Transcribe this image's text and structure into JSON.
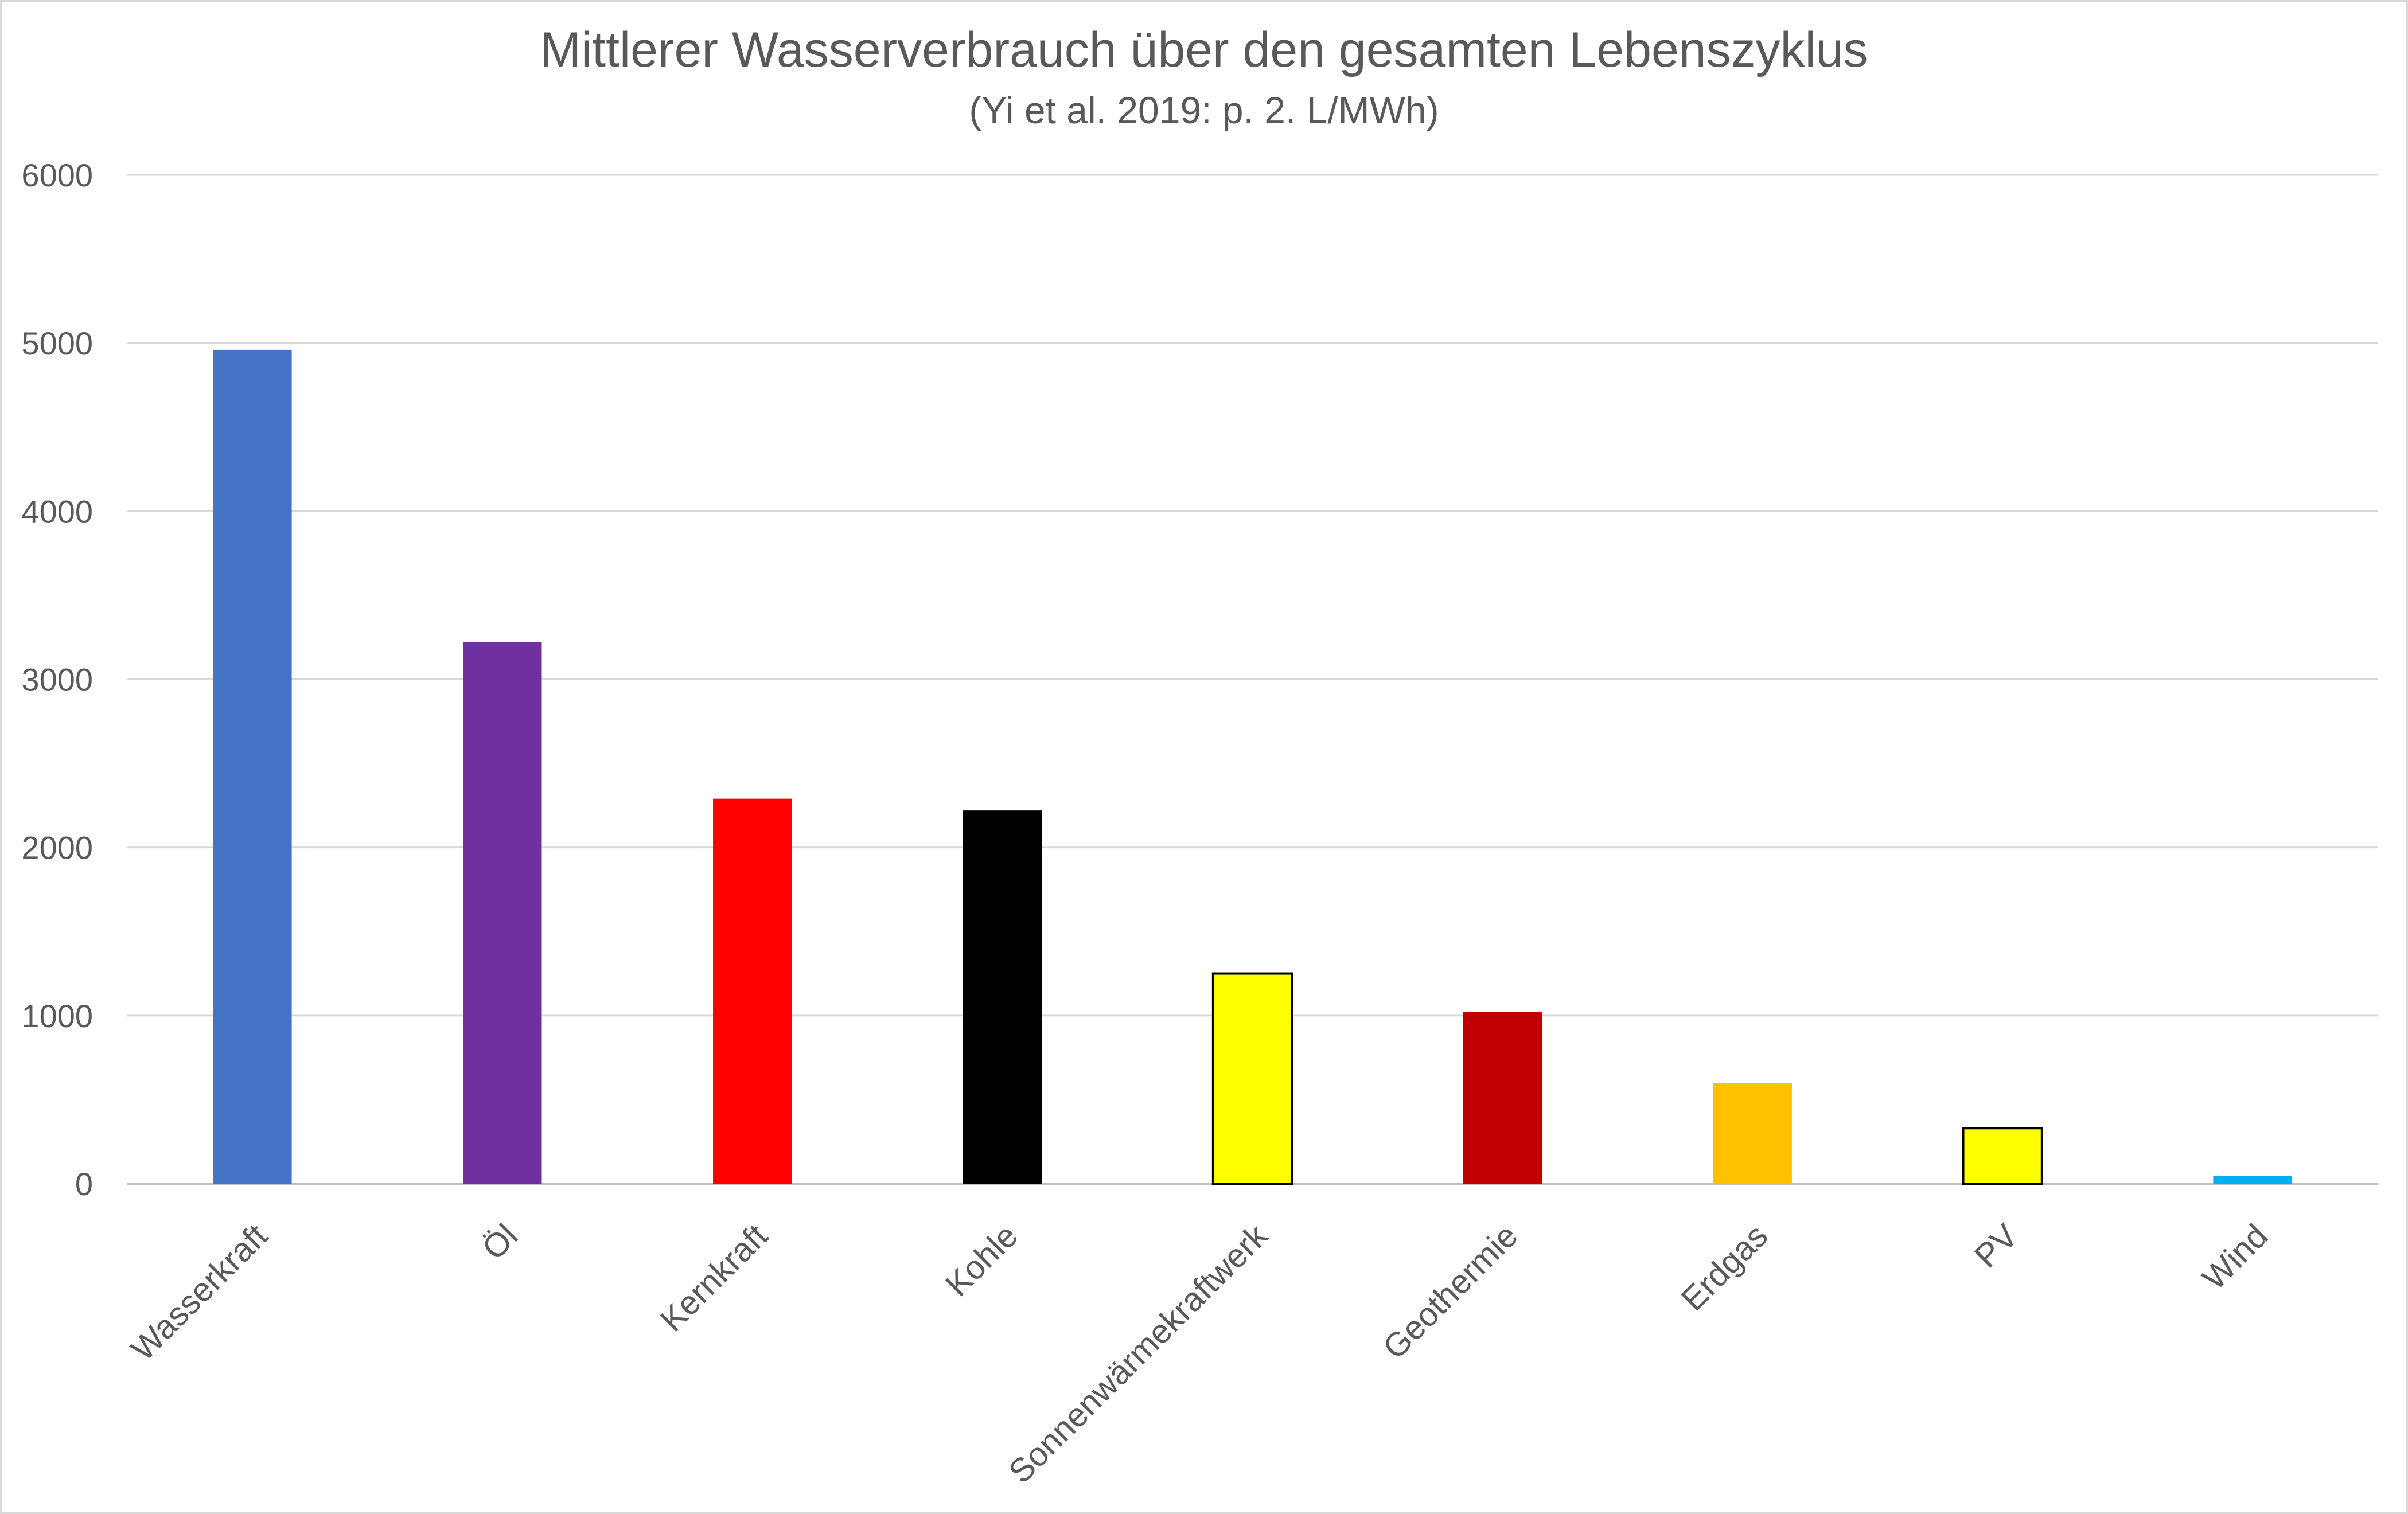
{
  "chart_data": {
    "type": "bar",
    "title": "Mittlerer Wasserverbrauch über den gesamten Lebenszyklus",
    "subtitle": "(Yi et al. 2019: p. 2.  L/MWh)",
    "xlabel": "",
    "ylabel": "",
    "ylim": [
      0,
      6000
    ],
    "yticks": [
      0,
      1000,
      2000,
      3000,
      4000,
      5000,
      6000
    ],
    "grid": true,
    "legend": "none",
    "categories": [
      "Wasserkraft",
      "Öl",
      "Kernkraft",
      "Kohle",
      "Sonnenwärmekraftwerk",
      "Geothermie",
      "Erdgas",
      "PV",
      "Wind"
    ],
    "values": [
      4960,
      3220,
      2290,
      2220,
      1250,
      1020,
      600,
      330,
      45
    ],
    "colors": [
      "#4472c4",
      "#7030a0",
      "#ff0000",
      "#000000",
      "#ffff00",
      "#c00000",
      "#ffc000",
      "#ffff00",
      "#00b0f0"
    ],
    "outlined": [
      false,
      false,
      false,
      false,
      true,
      false,
      false,
      true,
      false
    ]
  }
}
